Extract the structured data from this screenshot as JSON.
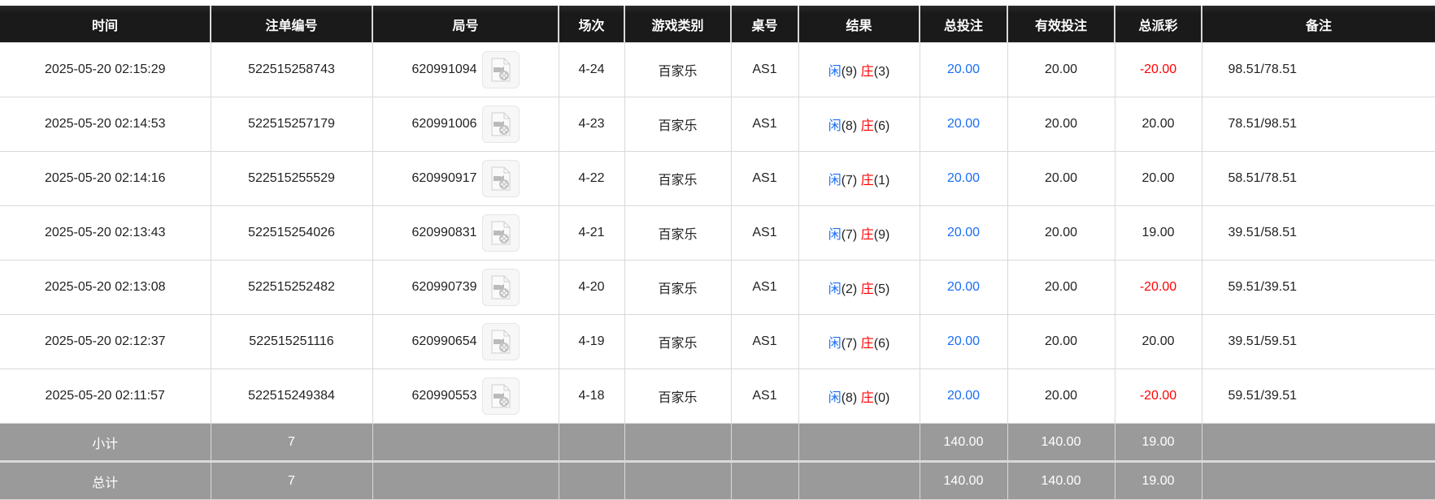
{
  "headers": [
    "时间",
    "注单编号",
    "局号",
    "场次",
    "游戏类别",
    "桌号",
    "结果",
    "总投注",
    "有效投注",
    "总派彩",
    "备注"
  ],
  "rows": [
    {
      "time": "2025-05-20 02:15:29",
      "bet_id": "522515258743",
      "round": "620991094",
      "session": "4-24",
      "game": "百家乐",
      "table": "AS1",
      "player_label": "闲",
      "player_val": "(9)",
      "banker_label": "庄",
      "banker_val": "(3)",
      "total_bet": "20.00",
      "valid_bet": "20.00",
      "payout": "-20.00",
      "payout_negative": true,
      "remark": "98.51/78.51"
    },
    {
      "time": "2025-05-20 02:14:53",
      "bet_id": "522515257179",
      "round": "620991006",
      "session": "4-23",
      "game": "百家乐",
      "table": "AS1",
      "player_label": "闲",
      "player_val": "(8)",
      "banker_label": "庄",
      "banker_val": "(6)",
      "total_bet": "20.00",
      "valid_bet": "20.00",
      "payout": "20.00",
      "payout_negative": false,
      "remark": "78.51/98.51"
    },
    {
      "time": "2025-05-20 02:14:16",
      "bet_id": "522515255529",
      "round": "620990917",
      "session": "4-22",
      "game": "百家乐",
      "table": "AS1",
      "player_label": "闲",
      "player_val": "(7)",
      "banker_label": "庄",
      "banker_val": "(1)",
      "total_bet": "20.00",
      "valid_bet": "20.00",
      "payout": "20.00",
      "payout_negative": false,
      "remark": "58.51/78.51"
    },
    {
      "time": "2025-05-20 02:13:43",
      "bet_id": "522515254026",
      "round": "620990831",
      "session": "4-21",
      "game": "百家乐",
      "table": "AS1",
      "player_label": "闲",
      "player_val": "(7)",
      "banker_label": "庄",
      "banker_val": "(9)",
      "total_bet": "20.00",
      "valid_bet": "20.00",
      "payout": "19.00",
      "payout_negative": false,
      "remark": "39.51/58.51"
    },
    {
      "time": "2025-05-20 02:13:08",
      "bet_id": "522515252482",
      "round": "620990739",
      "session": "4-20",
      "game": "百家乐",
      "table": "AS1",
      "player_label": "闲",
      "player_val": "(2)",
      "banker_label": "庄",
      "banker_val": "(5)",
      "total_bet": "20.00",
      "valid_bet": "20.00",
      "payout": "-20.00",
      "payout_negative": true,
      "remark": "59.51/39.51"
    },
    {
      "time": "2025-05-20 02:12:37",
      "bet_id": "522515251116",
      "round": "620990654",
      "session": "4-19",
      "game": "百家乐",
      "table": "AS1",
      "player_label": "闲",
      "player_val": "(7)",
      "banker_label": "庄",
      "banker_val": "(6)",
      "total_bet": "20.00",
      "valid_bet": "20.00",
      "payout": "20.00",
      "payout_negative": false,
      "remark": "39.51/59.51"
    },
    {
      "time": "2025-05-20 02:11:57",
      "bet_id": "522515249384",
      "round": "620990553",
      "session": "4-18",
      "game": "百家乐",
      "table": "AS1",
      "player_label": "闲",
      "player_val": "(8)",
      "banker_label": "庄",
      "banker_val": "(0)",
      "total_bet": "20.00",
      "valid_bet": "20.00",
      "payout": "-20.00",
      "payout_negative": true,
      "remark": "59.51/39.51"
    }
  ],
  "subtotal": {
    "label": "小计",
    "count": "7",
    "total_bet": "140.00",
    "valid_bet": "140.00",
    "payout": "19.00"
  },
  "total": {
    "label": "总计",
    "count": "7",
    "total_bet": "140.00",
    "valid_bet": "140.00",
    "payout": "19.00"
  },
  "colors": {
    "header_bg": "#1a1a1a",
    "player": "#1a6ef5",
    "banker": "#ff0000",
    "negative": "#ff0000",
    "summary_bg": "#9a9a9a"
  },
  "icons": {
    "replay": "video-replay-icon"
  }
}
